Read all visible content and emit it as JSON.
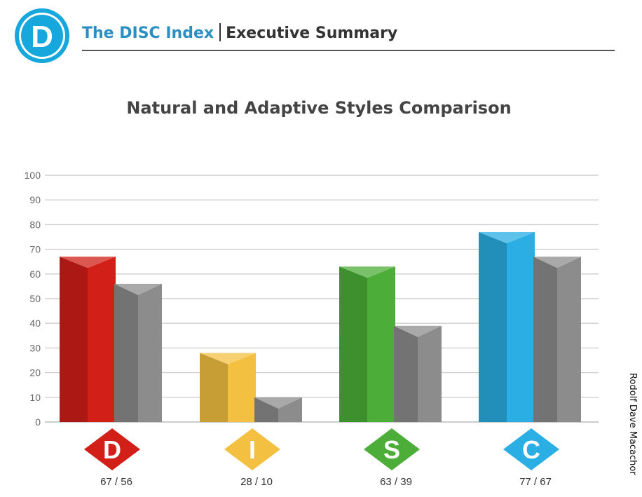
{
  "header": {
    "logo_letter": "D",
    "brand": "The DISC Index",
    "section": "Executive Summary"
  },
  "author": "Rodolf Dave  Macachor",
  "colors": {
    "brand": "#2b8fc4",
    "logo": "#16a7dd",
    "adaptive": "#8c8c8c",
    "D": "#d21f18",
    "I": "#f3c042",
    "S": "#4cae38",
    "C": "#2aaee3"
  },
  "chart_data": {
    "type": "bar",
    "title": "Natural and Adaptive Styles Comparison",
    "xlabel": "",
    "ylabel": "",
    "ylim": [
      0,
      100
    ],
    "yticks": [
      0,
      10,
      20,
      30,
      40,
      50,
      60,
      70,
      80,
      90,
      100
    ],
    "grid": true,
    "categories": [
      "D",
      "I",
      "S",
      "C"
    ],
    "category_labels": [
      "67 / 56",
      "28 / 10",
      "63 / 39",
      "77 / 67"
    ],
    "series": [
      {
        "name": "Natural",
        "values": [
          67,
          28,
          63,
          77
        ]
      },
      {
        "name": "Adaptive",
        "values": [
          56,
          10,
          39,
          67
        ]
      }
    ]
  }
}
